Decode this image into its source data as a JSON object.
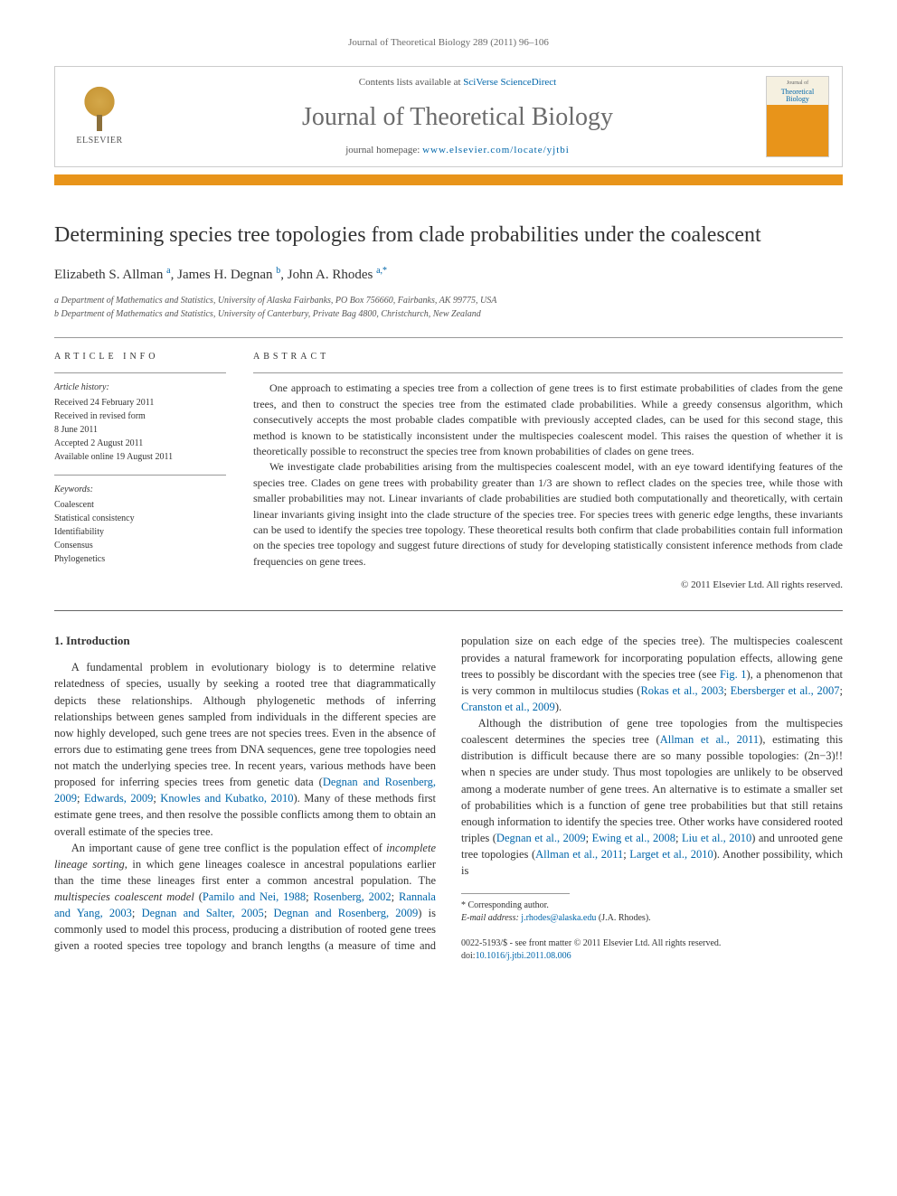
{
  "running_header": "Journal of Theoretical Biology 289 (2011) 96–106",
  "banner": {
    "publisher": "ELSEVIER",
    "contents_prefix": "Contents lists available at ",
    "contents_link": "SciVerse ScienceDirect",
    "journal_name": "Journal of Theoretical Biology",
    "homepage_prefix": "journal homepage: ",
    "homepage_url": "www.elsevier.com/locate/yjtbi",
    "cover_top": "Journal of",
    "cover_name": "Theoretical Biology"
  },
  "title": "Determining species tree topologies from clade probabilities under the coalescent",
  "authors_html": "Elizabeth S. Allman <sup>a</sup>, James H. Degnan <sup>b</sup>, John A. Rhodes <sup>a,*</sup>",
  "affiliations": [
    "a Department of Mathematics and Statistics, University of Alaska Fairbanks, PO Box 756660, Fairbanks, AK 99775, USA",
    "b Department of Mathematics and Statistics, University of Canterbury, Private Bag 4800, Christchurch, New Zealand"
  ],
  "article_info": {
    "heading": "ARTICLE INFO",
    "history_label": "Article history:",
    "history": [
      "Received 24 February 2011",
      "Received in revised form",
      "8 June 2011",
      "Accepted 2 August 2011",
      "Available online 19 August 2011"
    ],
    "keywords_label": "Keywords:",
    "keywords": [
      "Coalescent",
      "Statistical consistency",
      "Identifiability",
      "Consensus",
      "Phylogenetics"
    ]
  },
  "abstract": {
    "heading": "ABSTRACT",
    "p1": "One approach to estimating a species tree from a collection of gene trees is to first estimate probabilities of clades from the gene trees, and then to construct the species tree from the estimated clade probabilities. While a greedy consensus algorithm, which consecutively accepts the most probable clades compatible with previously accepted clades, can be used for this second stage, this method is known to be statistically inconsistent under the multispecies coalescent model. This raises the question of whether it is theoretically possible to reconstruct the species tree from known probabilities of clades on gene trees.",
    "p2": "We investigate clade probabilities arising from the multispecies coalescent model, with an eye toward identifying features of the species tree. Clades on gene trees with probability greater than 1/3 are shown to reflect clades on the species tree, while those with smaller probabilities may not. Linear invariants of clade probabilities are studied both computationally and theoretically, with certain linear invariants giving insight into the clade structure of the species tree. For species trees with generic edge lengths, these invariants can be used to identify the species tree topology. These theoretical results both confirm that clade probabilities contain full information on the species tree topology and suggest future directions of study for developing statistically consistent inference methods from clade frequencies on gene trees.",
    "copyright": "© 2011 Elsevier Ltd. All rights reserved."
  },
  "body": {
    "section_heading": "1. Introduction",
    "p1_a": "A fundamental problem in evolutionary biology is to determine relative relatedness of species, usually by seeking a rooted tree that diagrammatically depicts these relationships. Although phylogenetic methods of inferring relationships between genes sampled from individuals in the different species are now highly developed, such gene trees are not species trees. Even in the absence of errors due to estimating gene trees from DNA sequences, gene tree topologies need not match the underlying species tree. In recent years, various methods have been proposed for inferring species trees from genetic data (",
    "c1": "Degnan and Rosenberg, 2009",
    "p1_b": "; ",
    "c2": "Edwards, 2009",
    "p1_c": "; ",
    "c3": "Knowles and Kubatko, 2010",
    "p1_d": "). Many of these methods first estimate gene trees, and then resolve the possible conflicts among them to obtain an overall estimate of the species tree.",
    "p2_a": "An important cause of gene tree conflict is the population effect of ",
    "p2_em": "incomplete lineage sorting",
    "p2_b": ", in which gene lineages coalesce in ancestral populations earlier than the time these lineages first enter a common ancestral population. The ",
    "p2_em2": "multispecies coalescent model",
    "p2_c": " (",
    "c4": "Pamilo and Nei, 1988",
    "p2_d": "; ",
    "c5": "Rosenberg, 2002",
    "p2_e": "; ",
    "c6": "Rannala and Yang, 2003",
    "p2_f": "; ",
    "c7": "Degnan and Salter, 2005",
    "p2_g": "; ",
    "c8": "Degnan and Rosenberg, 2009",
    "p2_h": ") is commonly used to model this process, producing a distribution of rooted gene trees given a rooted species tree topology and branch lengths (a measure of time and population size on each edge of the species tree). The multispecies coalescent provides a natural framework for incorporating population effects, allowing gene trees to possibly be discordant with the species tree (see ",
    "c9": "Fig. 1",
    "p2_i": "), a phenomenon that is very common in multilocus studies (",
    "c10": "Rokas et al., 2003",
    "p2_j": "; ",
    "c11": "Ebersberger et al., 2007",
    "p2_k": "; ",
    "c12": "Cranston et al., 2009",
    "p2_l": ").",
    "p3_a": "Although the distribution of gene tree topologies from the multispecies coalescent determines the species tree (",
    "c13": "Allman et al., 2011",
    "p3_b": "), estimating this distribution is difficult because there are so many possible topologies: (2n−3)!! when n species are under study. Thus most topologies are unlikely to be observed among a moderate number of gene trees. An alternative is to estimate a smaller set of probabilities which is a function of gene tree probabilities but that still retains enough information to identify the species tree. Other works have considered rooted triples (",
    "c14": "Degnan et al., 2009",
    "p3_c": "; ",
    "c15": "Ewing et al., 2008",
    "p3_d": "; ",
    "c16": "Liu et al., 2010",
    "p3_e": ") and unrooted gene tree topologies (",
    "c17": "Allman et al., 2011",
    "p3_f": "; ",
    "c18": "Larget et al., 2010",
    "p3_g": "). Another possibility, which is"
  },
  "footnote": {
    "corr_label": "* Corresponding author.",
    "email_label": "E-mail address:",
    "email": "j.rhodes@alaska.edu",
    "email_who": "(J.A. Rhodes)."
  },
  "footer": {
    "line1": "0022-5193/$ - see front matter © 2011 Elsevier Ltd. All rights reserved.",
    "doi_label": "doi:",
    "doi": "10.1016/j.jtbi.2011.08.006"
  },
  "colors": {
    "accent_orange": "#e8941a",
    "link_blue": "#0066aa",
    "text_gray": "#6b6b6b",
    "rule_gray": "#999999"
  }
}
